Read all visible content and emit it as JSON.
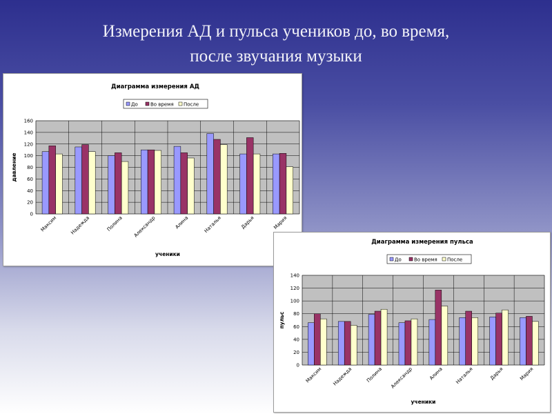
{
  "slide": {
    "title_line1": "Измерения АД и пульса учеников до, во время,",
    "title_line2": "после звучания музыки"
  },
  "colors": {
    "series_1": "#9999ff",
    "series_2": "#993366",
    "series_3": "#ffffcc",
    "plot_area": "#c0c0c0"
  },
  "chart_data": [
    {
      "type": "bar",
      "title": "Диаграмма измерения АД",
      "xlabel": "ученики",
      "ylabel": "давление",
      "ylim": [
        0,
        160
      ],
      "yticks": [
        0,
        20,
        40,
        60,
        80,
        100,
        120,
        140,
        160
      ],
      "grid": true,
      "legend_position": "top",
      "categories": [
        "Максим",
        "Надежда",
        "Полина",
        "Александр",
        "Алина",
        "Наталья",
        "Дарья",
        "Мария"
      ],
      "series": [
        {
          "name": "До",
          "values": [
            107,
            115,
            100,
            110,
            116,
            138,
            103,
            103
          ]
        },
        {
          "name": "Во время",
          "values": [
            117,
            119,
            105,
            110,
            105,
            128,
            131,
            104
          ]
        },
        {
          "name": "После",
          "values": [
            103,
            107,
            90,
            109,
            96,
            119,
            103,
            81
          ]
        }
      ]
    },
    {
      "type": "bar",
      "title": "Диаграмма измерения пульса",
      "xlabel": "ученики",
      "ylabel": "пульс",
      "ylim": [
        0,
        140
      ],
      "yticks": [
        0,
        20,
        40,
        60,
        80,
        100,
        120,
        140
      ],
      "grid": true,
      "legend_position": "top",
      "categories": [
        "Максим",
        "Надежда",
        "Полина",
        "Александр",
        "Алина",
        "Наталья",
        "Дарья",
        "Мария"
      ],
      "series": [
        {
          "name": "До",
          "values": [
            66,
            68,
            79,
            66,
            71,
            74,
            75,
            74
          ]
        },
        {
          "name": "Во время",
          "values": [
            80,
            68,
            84,
            69,
            117,
            84,
            81,
            76
          ]
        },
        {
          "name": "После",
          "values": [
            72,
            62,
            87,
            72,
            92,
            74,
            86,
            68
          ]
        }
      ]
    }
  ]
}
